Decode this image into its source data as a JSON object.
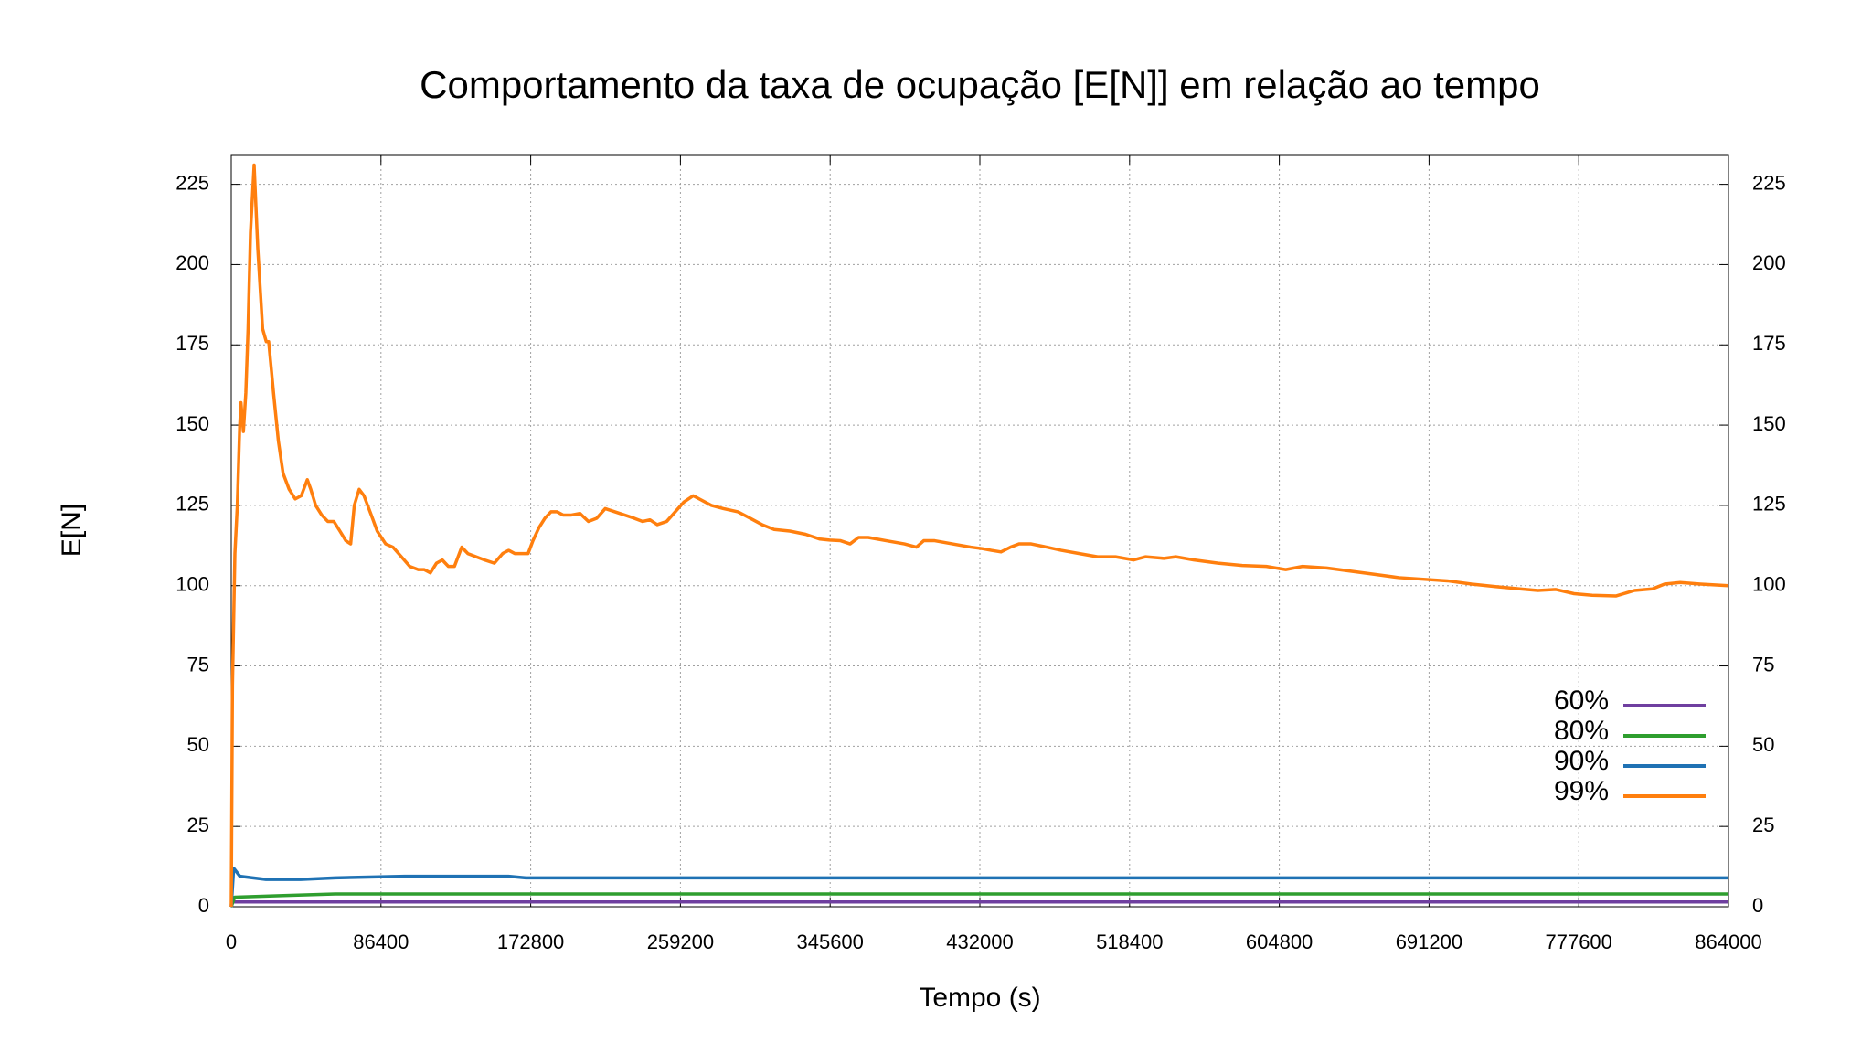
{
  "chart_data": {
    "type": "line",
    "title": "Comportamento da taxa de ocupação [E[N]] em relação ao tempo",
    "xlabel": "Tempo (s)",
    "ylabel": "E[N]",
    "xlim": [
      0,
      864000
    ],
    "xticks": [
      0,
      86400,
      172800,
      259200,
      345600,
      432000,
      518400,
      604800,
      691200,
      777600,
      864000
    ],
    "ylim": [
      0,
      234
    ],
    "yticks": [
      0,
      25,
      50,
      75,
      100,
      125,
      150,
      175,
      200,
      225
    ],
    "y2lim": [
      0,
      234
    ],
    "y2ticks": [
      0,
      25,
      50,
      75,
      100,
      125,
      150,
      175,
      200,
      225
    ],
    "grid": true,
    "legend": "bottom-right",
    "series": [
      {
        "name": "60%",
        "color": "#6f3fa0",
        "x": [
          0,
          864000
        ],
        "values": [
          1.5,
          1.5
        ]
      },
      {
        "name": "80%",
        "color": "#2e9e2e",
        "x": [
          0,
          2000,
          30000,
          60000,
          864000
        ],
        "values": [
          0,
          3,
          3.5,
          4,
          4
        ]
      },
      {
        "name": "90%",
        "color": "#1f72b4",
        "x": [
          0,
          1400,
          5000,
          20000,
          40000,
          60000,
          100000,
          160000,
          170000,
          864000
        ],
        "values": [
          0,
          12,
          9.5,
          8.5,
          8.5,
          9,
          9.5,
          9.5,
          9,
          9
        ]
      },
      {
        "name": "99%",
        "color": "#ff7f0e",
        "x": [
          0,
          700,
          2100,
          3500,
          4900,
          5600,
          7000,
          8400,
          9700,
          11100,
          13200,
          15300,
          18100,
          20200,
          21600,
          24400,
          27200,
          29900,
          33400,
          36900,
          40400,
          43900,
          45900,
          48700,
          52200,
          55700,
          59200,
          62700,
          66100,
          68900,
          71000,
          73800,
          76600,
          80800,
          84200,
          89100,
          93300,
          98200,
          103000,
          107900,
          111400,
          114900,
          118400,
          121800,
          125300,
          128800,
          133000,
          136500,
          141300,
          146200,
          151800,
          156600,
          160100,
          163600,
          167800,
          171300,
          174100,
          177500,
          181000,
          184500,
          188000,
          191500,
          196300,
          201200,
          206100,
          210900,
          215800,
          221400,
          227000,
          232500,
          237400,
          241600,
          245800,
          251300,
          256200,
          261100,
          266600,
          270100,
          277100,
          284000,
          292400,
          299400,
          306300,
          313300,
          322300,
          331400,
          339700,
          345300,
          351600,
          357100,
          362000,
          367600,
          378000,
          388500,
          395400,
          399600,
          405900,
          416300,
          426800,
          433700,
          438600,
          444200,
          449700,
          454600,
          461600,
          470600,
          479000,
          489400,
          499900,
          510300,
          520800,
          527700,
          538200,
          545100,
          555600,
          569500,
          583400,
          597300,
          608500,
          618200,
          632100,
          646100,
          660000,
          673900,
          687800,
          701800,
          715700,
          729600,
          743500,
          754000,
          764400,
          774900,
          785300,
          799200,
          809700,
          820100,
          827100,
          836100,
          847900,
          864000
        ],
        "values": [
          0,
          69,
          110,
          125,
          150,
          157,
          148,
          160,
          180,
          210,
          231,
          205,
          180,
          176,
          176,
          160,
          145,
          135,
          130,
          127,
          128,
          133,
          130,
          125,
          122,
          120,
          120,
          117,
          114,
          113,
          125,
          130,
          128,
          122,
          117,
          113,
          112,
          109,
          106,
          105,
          105,
          104,
          107,
          108,
          106,
          106,
          112,
          110,
          109,
          108,
          107,
          110,
          111,
          110,
          110,
          110,
          114,
          118,
          121,
          123,
          123,
          122,
          122,
          122.5,
          120,
          121,
          124,
          123,
          122,
          121,
          120,
          120.5,
          119,
          120,
          123,
          126,
          128,
          127,
          125,
          124,
          123,
          121,
          119,
          117.5,
          117,
          116,
          114.5,
          114.2,
          114,
          113,
          115,
          115,
          114,
          113,
          112,
          114,
          114,
          113,
          112,
          111.5,
          111,
          110.5,
          112,
          113,
          113,
          112,
          111,
          110,
          109,
          109,
          108,
          109,
          108.5,
          109,
          108,
          107,
          106.3,
          106,
          105,
          106,
          105.5,
          104.5,
          103.5,
          102.5,
          102,
          101.5,
          100.5,
          99.7,
          99,
          98.5,
          98.8,
          97.5,
          97,
          96.8,
          98.5,
          99,
          100.5,
          101,
          100.5,
          100
        ]
      }
    ]
  }
}
